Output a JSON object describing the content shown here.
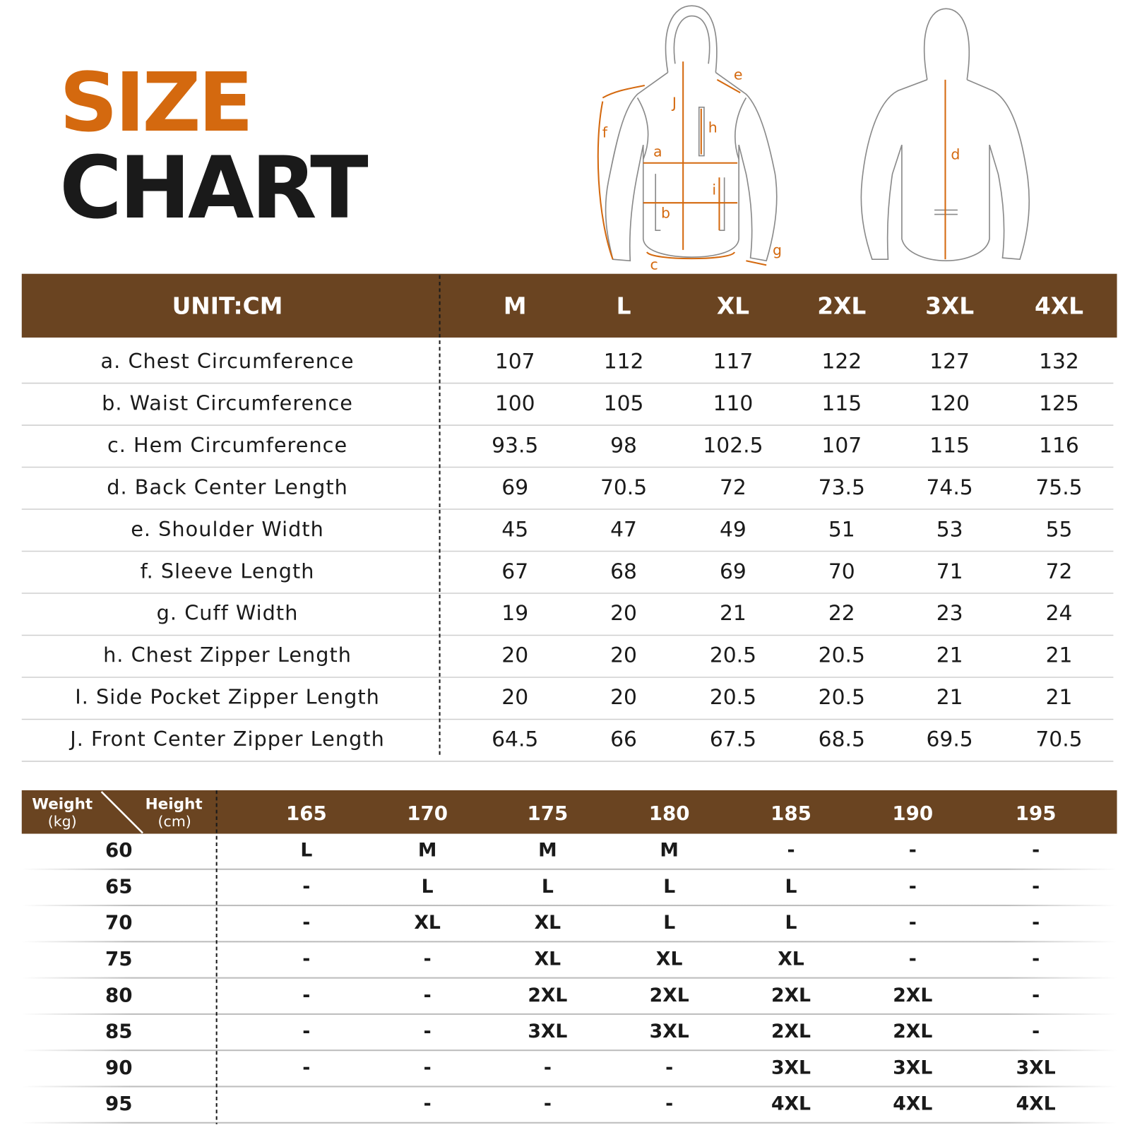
{
  "title": {
    "line1": "SIZE",
    "line2": "CHART"
  },
  "diagram": {
    "front_labels": [
      "J",
      "e",
      "h",
      "f",
      "a",
      "i",
      "b",
      "c",
      "g"
    ],
    "back_labels": [
      "d"
    ]
  },
  "size_table": {
    "header": [
      "UNIT:CM",
      "M",
      "L",
      "XL",
      "2XL",
      "3XL",
      "4XL"
    ],
    "rows": [
      {
        "label": "a. Chest Circumference",
        "values": [
          107,
          112,
          117,
          122,
          127,
          132
        ]
      },
      {
        "label": "b. Waist Circumference",
        "values": [
          100,
          105,
          110,
          115,
          120,
          125
        ]
      },
      {
        "label": "c. Hem Circumference",
        "values": [
          93.5,
          98,
          102.5,
          107,
          115,
          116
        ]
      },
      {
        "label": "d. Back Center Length",
        "values": [
          69,
          70.5,
          72,
          73.5,
          74.5,
          75.5
        ]
      },
      {
        "label": "e. Shoulder Width",
        "values": [
          45,
          47,
          49,
          51,
          53,
          55
        ]
      },
      {
        "label": "f. Sleeve Length",
        "values": [
          67,
          68,
          69,
          70,
          71,
          72
        ]
      },
      {
        "label": "g. Cuff Width",
        "values": [
          19,
          20,
          21,
          22,
          23,
          24
        ]
      },
      {
        "label": "h. Chest Zipper Length",
        "values": [
          20,
          20,
          20.5,
          20.5,
          21,
          21
        ]
      },
      {
        "label": "I. Side Pocket Zipper Length",
        "values": [
          20,
          20,
          20.5,
          20.5,
          21,
          21
        ]
      },
      {
        "label": "J. Front Center Zipper Length",
        "values": [
          64.5,
          66,
          67.5,
          68.5,
          69.5,
          70.5
        ]
      }
    ]
  },
  "fit_table": {
    "corner": {
      "weight": "Weight",
      "weight_unit": "(kg)",
      "height": "Height",
      "height_unit": "(cm)"
    },
    "heights": [
      165,
      170,
      175,
      180,
      185,
      190,
      195
    ],
    "rows": [
      {
        "weight": 60,
        "sizes": [
          "L",
          "M",
          "M",
          "M",
          "-",
          "-",
          "-"
        ]
      },
      {
        "weight": 65,
        "sizes": [
          "-",
          "L",
          "L",
          "L",
          "L",
          "-",
          "-"
        ]
      },
      {
        "weight": 70,
        "sizes": [
          "-",
          "XL",
          "XL",
          "L",
          "L",
          "-",
          "-"
        ]
      },
      {
        "weight": 75,
        "sizes": [
          "-",
          "-",
          "XL",
          "XL",
          "XL",
          "-",
          "-"
        ]
      },
      {
        "weight": 80,
        "sizes": [
          "-",
          "-",
          "2XL",
          "2XL",
          "2XL",
          "2XL",
          "-"
        ]
      },
      {
        "weight": 85,
        "sizes": [
          "-",
          "-",
          "3XL",
          "3XL",
          "2XL",
          "2XL",
          "-"
        ]
      },
      {
        "weight": 90,
        "sizes": [
          "-",
          "-",
          "-",
          "-",
          "3XL",
          "3XL",
          "3XL"
        ]
      },
      {
        "weight": 95,
        "sizes": [
          null,
          "-",
          "-",
          "-",
          "4XL",
          "4XL",
          "4XL"
        ]
      }
    ]
  }
}
